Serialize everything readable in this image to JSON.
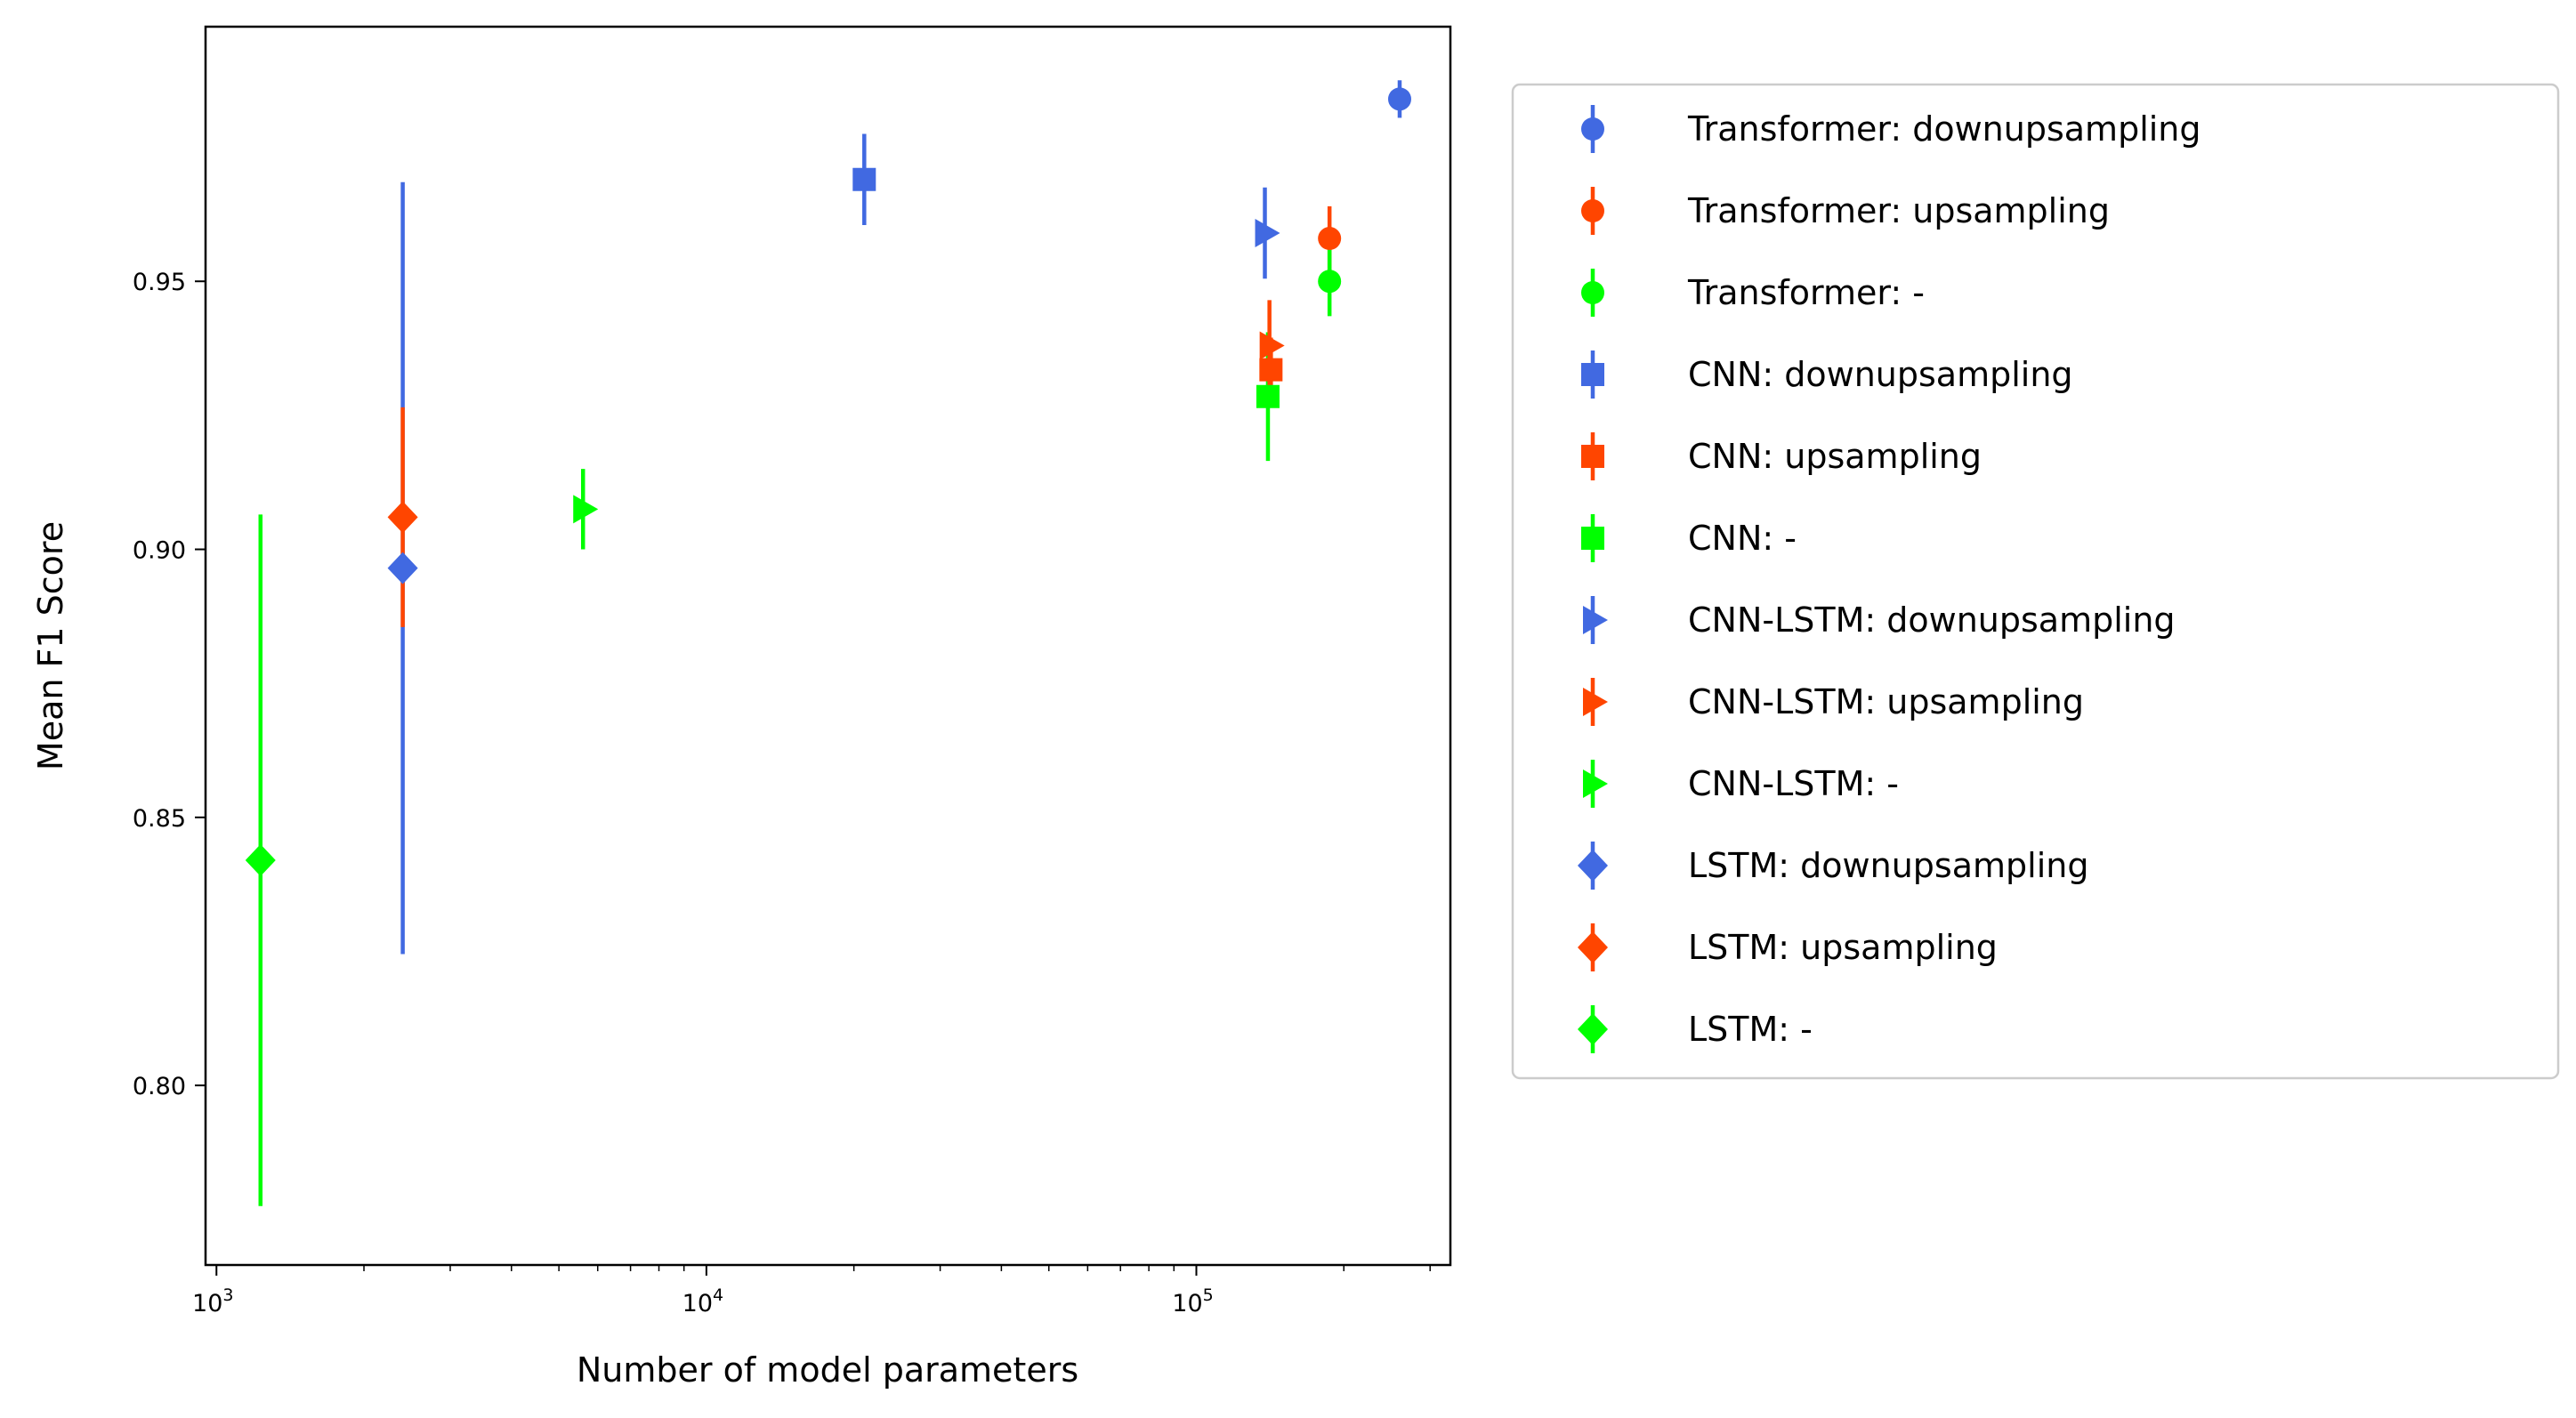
{
  "chart_data": {
    "type": "scatter",
    "xlabel": "Number of model parameters",
    "ylabel": "Mean F1 Score",
    "xscale": "log",
    "xlim": [
      950,
      330000
    ],
    "ylim": [
      0.7665,
      0.9975
    ],
    "x_ticks": [
      {
        "value": 1000,
        "base": "10",
        "exp": "3"
      },
      {
        "value": 10000,
        "base": "10",
        "exp": "4"
      },
      {
        "value": 100000,
        "base": "10",
        "exp": "5"
      }
    ],
    "y_ticks": [
      {
        "value": 0.8,
        "label": "0.80"
      },
      {
        "value": 0.85,
        "label": "0.85"
      },
      {
        "value": 0.9,
        "label": "0.90"
      },
      {
        "value": 0.95,
        "label": "0.95"
      }
    ],
    "grid": false,
    "legend_position": "outside right",
    "colors": {
      "downupsampling": "#4169e1",
      "upsampling": "#ff4500",
      "none": "#00ff00"
    },
    "series": [
      {
        "name": "Transformer: downupsampling",
        "marker": "circle",
        "color": "#4169e1",
        "points": [
          {
            "x": 260000,
            "y": 0.984,
            "err": 0.0035
          }
        ]
      },
      {
        "name": "Transformer: upsampling",
        "marker": "circle",
        "color": "#ff4500",
        "points": [
          {
            "x": 187000,
            "y": 0.958,
            "err": 0.006
          }
        ]
      },
      {
        "name": "Transformer: -",
        "marker": "circle",
        "color": "#00ff00",
        "points": [
          {
            "x": 187000,
            "y": 0.95,
            "err": 0.0065
          }
        ]
      },
      {
        "name": "CNN: downupsampling",
        "marker": "square",
        "color": "#4169e1",
        "points": [
          {
            "x": 21000,
            "y": 0.969,
            "err": 0.0085
          }
        ]
      },
      {
        "name": "CNN: upsampling",
        "marker": "square",
        "color": "#ff4500",
        "points": [
          {
            "x": 142000,
            "y": 0.9335,
            "err": 0.006
          }
        ]
      },
      {
        "name": "CNN: -",
        "marker": "square",
        "color": "#00ff00",
        "points": [
          {
            "x": 140000,
            "y": 0.9285,
            "err": 0.012
          }
        ]
      },
      {
        "name": "CNN-LSTM: downupsampling",
        "marker": "triangle-right",
        "color": "#4169e1",
        "points": [
          {
            "x": 138000,
            "y": 0.959,
            "err": 0.0085
          }
        ]
      },
      {
        "name": "CNN-LSTM: upsampling",
        "marker": "triangle-right",
        "color": "#ff4500",
        "points": [
          {
            "x": 141000,
            "y": 0.938,
            "err": 0.0085
          }
        ]
      },
      {
        "name": "CNN-LSTM: -",
        "marker": "triangle-right",
        "color": "#00ff00",
        "points": [
          {
            "x": 5600,
            "y": 0.9075,
            "err": 0.0075
          }
        ]
      },
      {
        "name": "LSTM: downupsampling",
        "marker": "diamond",
        "color": "#4169e1",
        "points": [
          {
            "x": 2400,
            "y": 0.8965,
            "err": 0.072
          }
        ]
      },
      {
        "name": "LSTM: upsampling",
        "marker": "diamond",
        "color": "#ff4500",
        "points": [
          {
            "x": 2400,
            "y": 0.906,
            "err": 0.0205
          }
        ]
      },
      {
        "name": "LSTM: -",
        "marker": "diamond",
        "color": "#00ff00",
        "points": [
          {
            "x": 1230,
            "y": 0.842,
            "err": 0.0645
          }
        ]
      }
    ]
  }
}
